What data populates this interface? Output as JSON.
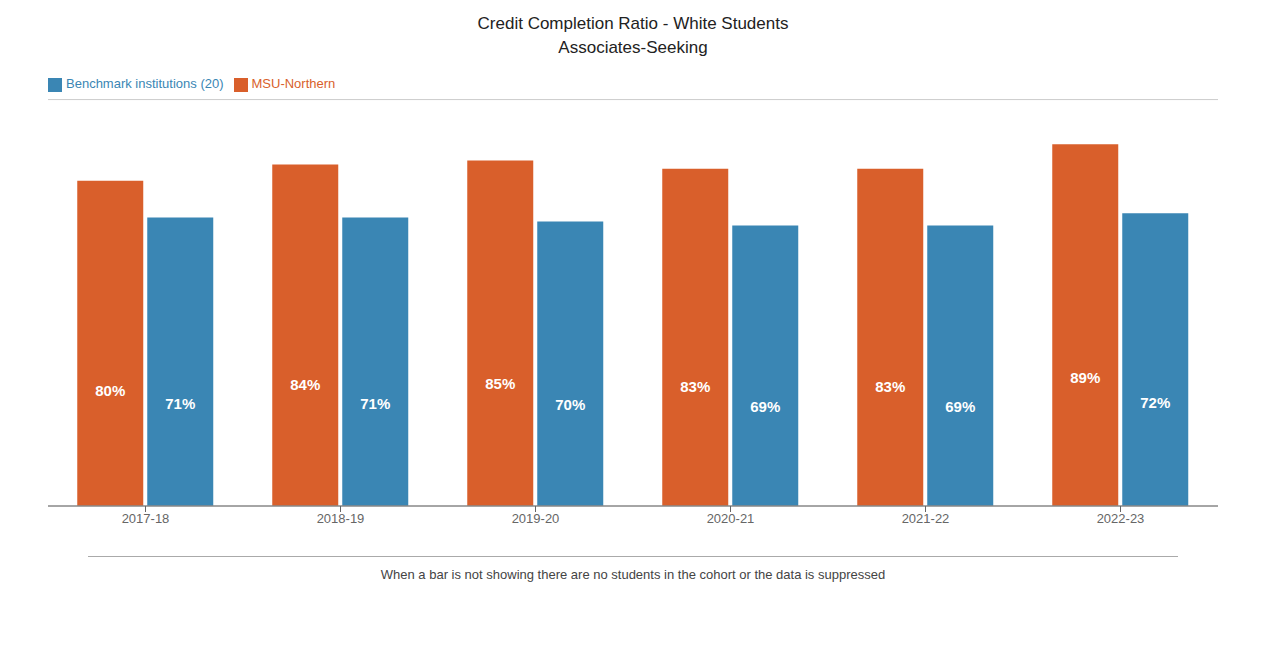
{
  "chart_data": {
    "type": "bar",
    "title": "Credit Completion Ratio - White Students",
    "subtitle": "Associates-Seeking",
    "categories": [
      "2017-18",
      "2018-19",
      "2019-20",
      "2020-21",
      "2021-22",
      "2022-23"
    ],
    "series": [
      {
        "name": "MSU-Northern",
        "color": "#D95F2B",
        "values": [
          80,
          84,
          85,
          83,
          83,
          89
        ],
        "value_labels": [
          "80%",
          "84%",
          "85%",
          "83%",
          "83%",
          "89%"
        ]
      },
      {
        "name": "Benchmark institutions (20)",
        "color": "#3A86B4",
        "values": [
          71,
          71,
          70,
          69,
          69,
          72
        ],
        "value_labels": [
          "71%",
          "71%",
          "70%",
          "69%",
          "69%",
          "72%"
        ]
      }
    ],
    "ylim": [
      0,
      100
    ],
    "grid": false,
    "legend": "upper left",
    "data_labels": true,
    "tick_labels": "x",
    "annotations": [
      "When a bar is not showing there are no students in the cohort or the data is suppressed"
    ]
  }
}
